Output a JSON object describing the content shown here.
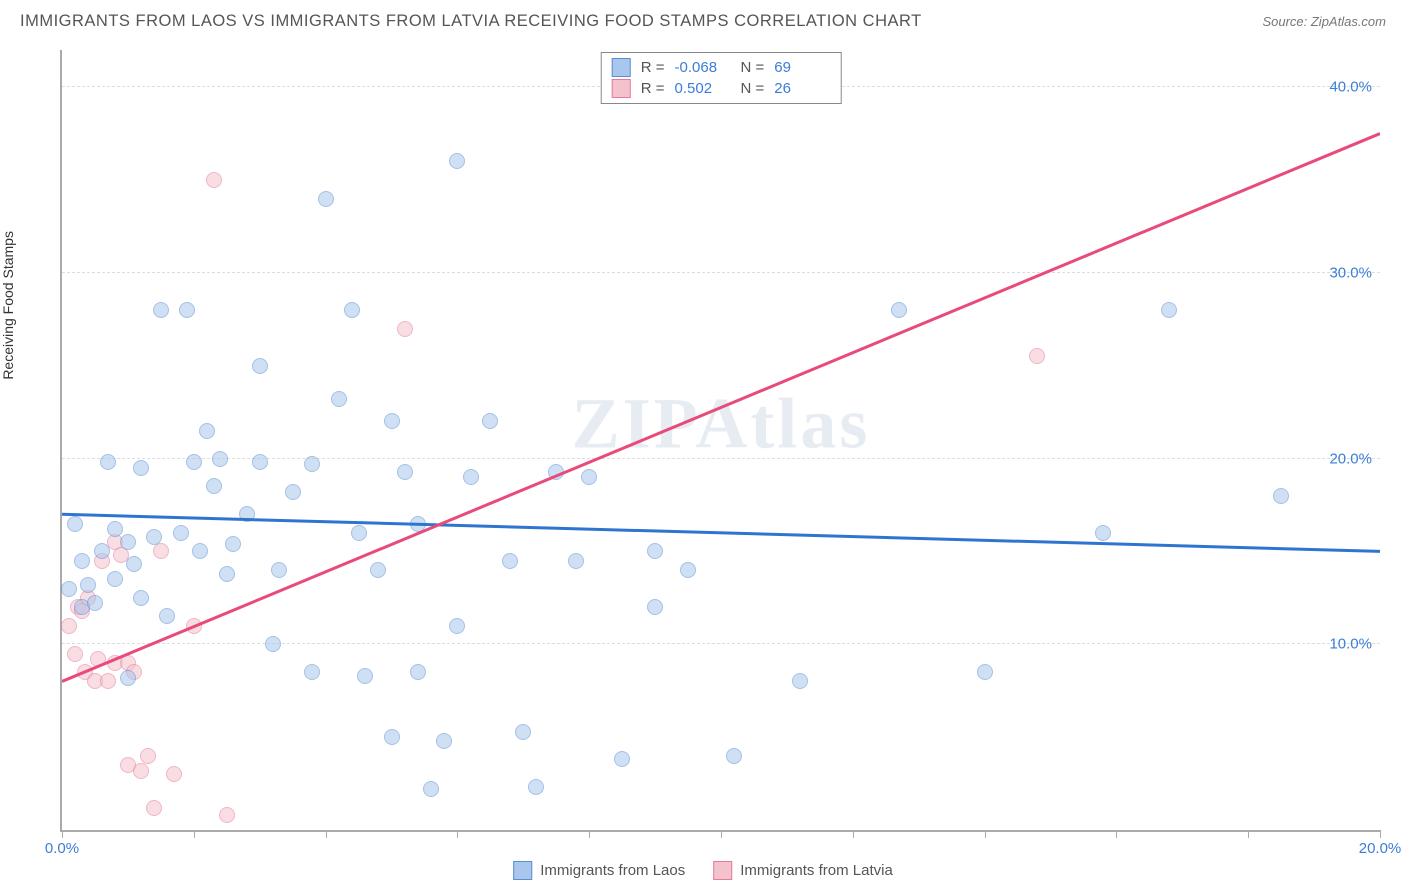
{
  "title": "IMMIGRANTS FROM LAOS VS IMMIGRANTS FROM LATVIA RECEIVING FOOD STAMPS CORRELATION CHART",
  "source_prefix": "Source: ",
  "source_name": "ZipAtlas.com",
  "y_axis_label": "Receiving Food Stamps",
  "watermark": "ZIPAtlas",
  "chart": {
    "type": "scatter",
    "background_color": "#ffffff",
    "grid_color": "#dddddd",
    "axis_color": "#aaaaaa",
    "tick_label_color": "#3b7dd8",
    "xlim": [
      0,
      20
    ],
    "ylim": [
      0,
      42
    ],
    "x_ticks": [
      0,
      2,
      4,
      6,
      8,
      10,
      12,
      14,
      16,
      18,
      20
    ],
    "x_tick_labels": {
      "0": "0.0%",
      "20": "20.0%"
    },
    "y_gridlines": [
      10,
      20,
      30,
      40
    ],
    "y_tick_labels": {
      "10": "10.0%",
      "20": "20.0%",
      "30": "30.0%",
      "40": "40.0%"
    },
    "tick_fontsize": 15,
    "point_radius": 8,
    "point_opacity": 0.55
  },
  "series": {
    "laos": {
      "label": "Immigrants from Laos",
      "fill_color": "#a9c7ec",
      "stroke_color": "#5a8fd4",
      "R": "-0.068",
      "N": "69",
      "trend": {
        "y_at_x0": 17.0,
        "y_at_x20": 15.0,
        "color": "#2e75d0",
        "width": 3
      },
      "points": [
        [
          0.1,
          13.0
        ],
        [
          0.2,
          16.5
        ],
        [
          0.3,
          12.0
        ],
        [
          0.3,
          14.5
        ],
        [
          0.4,
          13.2
        ],
        [
          0.5,
          12.2
        ],
        [
          0.6,
          15.0
        ],
        [
          0.7,
          19.8
        ],
        [
          0.8,
          13.5
        ],
        [
          0.8,
          16.2
        ],
        [
          1.0,
          15.5
        ],
        [
          1.0,
          8.2
        ],
        [
          1.1,
          14.3
        ],
        [
          1.2,
          19.5
        ],
        [
          1.2,
          12.5
        ],
        [
          1.4,
          15.8
        ],
        [
          1.5,
          28.0
        ],
        [
          1.6,
          11.5
        ],
        [
          1.8,
          16.0
        ],
        [
          1.9,
          28.0
        ],
        [
          2.0,
          19.8
        ],
        [
          2.1,
          15.0
        ],
        [
          2.2,
          21.5
        ],
        [
          2.3,
          18.5
        ],
        [
          2.4,
          20.0
        ],
        [
          2.5,
          13.8
        ],
        [
          2.6,
          15.4
        ],
        [
          2.8,
          17.0
        ],
        [
          3.0,
          25.0
        ],
        [
          3.0,
          19.8
        ],
        [
          3.2,
          10.0
        ],
        [
          3.3,
          14.0
        ],
        [
          3.5,
          18.2
        ],
        [
          3.8,
          19.7
        ],
        [
          4.0,
          34.0
        ],
        [
          4.2,
          23.2
        ],
        [
          4.4,
          28.0
        ],
        [
          4.5,
          16.0
        ],
        [
          4.8,
          14.0
        ],
        [
          5.0,
          22.0
        ],
        [
          5.0,
          5.0
        ],
        [
          5.2,
          19.3
        ],
        [
          5.4,
          16.5
        ],
        [
          5.6,
          2.2
        ],
        [
          5.8,
          4.8
        ],
        [
          6.0,
          36.0
        ],
        [
          6.0,
          11.0
        ],
        [
          6.2,
          19.0
        ],
        [
          6.5,
          22.0
        ],
        [
          6.8,
          14.5
        ],
        [
          7.0,
          5.3
        ],
        [
          7.2,
          2.3
        ],
        [
          7.5,
          19.3
        ],
        [
          7.8,
          14.5
        ],
        [
          8.0,
          19.0
        ],
        [
          8.5,
          3.8
        ],
        [
          9.0,
          12.0
        ],
        [
          9.0,
          15.0
        ],
        [
          9.5,
          14.0
        ],
        [
          10.2,
          4.0
        ],
        [
          11.2,
          8.0
        ],
        [
          12.7,
          28.0
        ],
        [
          14.0,
          8.5
        ],
        [
          15.8,
          16.0
        ],
        [
          16.8,
          28.0
        ],
        [
          18.5,
          18.0
        ],
        [
          3.8,
          8.5
        ],
        [
          4.6,
          8.3
        ],
        [
          5.4,
          8.5
        ]
      ]
    },
    "latvia": {
      "label": "Immigrants from Latvia",
      "fill_color": "#f4c2cd",
      "stroke_color": "#e67a99",
      "R": "0.502",
      "N": "26",
      "trend": {
        "y_at_x0": 8.0,
        "y_at_x20": 37.5,
        "color": "#e84b7a",
        "width": 3,
        "dash_from_x": 14.5
      },
      "points": [
        [
          0.1,
          11.0
        ],
        [
          0.2,
          9.5
        ],
        [
          0.25,
          12.0
        ],
        [
          0.3,
          11.8
        ],
        [
          0.35,
          8.5
        ],
        [
          0.4,
          12.5
        ],
        [
          0.5,
          8.0
        ],
        [
          0.55,
          9.2
        ],
        [
          0.6,
          14.5
        ],
        [
          0.7,
          8.0
        ],
        [
          0.8,
          9.0
        ],
        [
          0.8,
          15.5
        ],
        [
          0.9,
          14.8
        ],
        [
          1.0,
          9.0
        ],
        [
          1.0,
          3.5
        ],
        [
          1.1,
          8.5
        ],
        [
          1.2,
          3.2
        ],
        [
          1.3,
          4.0
        ],
        [
          1.4,
          1.2
        ],
        [
          1.5,
          15.0
        ],
        [
          1.7,
          3.0
        ],
        [
          2.0,
          11.0
        ],
        [
          2.3,
          35.0
        ],
        [
          2.5,
          0.8
        ],
        [
          5.2,
          27.0
        ],
        [
          14.8,
          25.5
        ]
      ]
    }
  },
  "legend_top": {
    "R_label": "R",
    "N_label": "N",
    "eq": "="
  }
}
